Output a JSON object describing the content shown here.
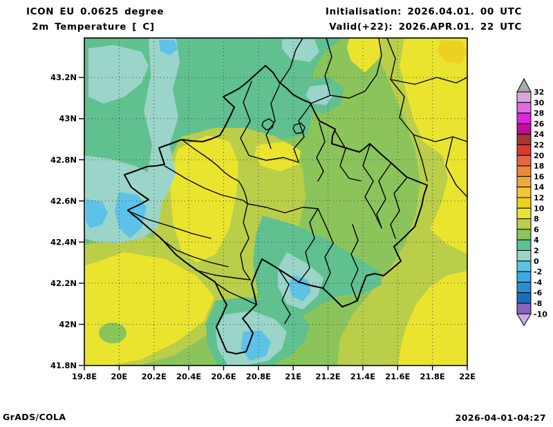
{
  "header": {
    "model": "ICON EU 0.0625 degree",
    "parameter": " 2m Temperature [ C]",
    "initialisation": "Initialisation: 2026.04.01. 00 UTC",
    "valid": "Valid(+22): 2026.APR.01. 22 UTC"
  },
  "footer": {
    "left": "GrADS/COLA",
    "right": "2026-04-01-04:27"
  },
  "axes": {
    "lat_labels": [
      "43.2N",
      "43N",
      "42.8N",
      "42.6N",
      "42.4N",
      "42.2N",
      "42N",
      "41.8N"
    ],
    "lon_labels": [
      "19.8E",
      "20E",
      "20.2E",
      "20.4E",
      "20.6E",
      "20.8E",
      "21E",
      "21.2E",
      "21.4E",
      "21.6E",
      "21.8E",
      "22E"
    ]
  },
  "colorbar": {
    "levels": [
      32,
      30,
      28,
      26,
      24,
      22,
      20,
      18,
      16,
      14,
      12,
      10,
      8,
      6,
      4,
      2,
      0,
      -2,
      -4,
      -6,
      -8,
      -10
    ],
    "colors_top_to_bottom": [
      "#d9a6dc",
      "#dd6bdd",
      "#de26de",
      "#c20d9c",
      "#a93434",
      "#dc3a2e",
      "#e26749",
      "#ea8a3b",
      "#f0a83a",
      "#f3c631",
      "#edd121",
      "#eae42e",
      "#bace49",
      "#8cc45c",
      "#60c090",
      "#9bd4c8",
      "#5ec2e8",
      "#3ea9e0",
      "#2a8bd0",
      "#1d6cbb",
      "#8a64bc"
    ],
    "above_max_color": "#a9a9a9",
    "below_min_color": "#c9aae2"
  },
  "chart_data": {
    "type": "map",
    "title": "2m Temperature [ C]",
    "model": "ICON EU 0.0625 degree",
    "initialisation": "2026.04.01. 00 UTC",
    "valid": "2026.APR.01. 22 UTC",
    "forecast_hour": "+22",
    "units": "C",
    "lon_range": [
      19.8,
      22.0
    ],
    "lat_range": [
      41.8,
      43.4
    ],
    "grid_interval_deg": 0.2,
    "contour_interval": 2,
    "value_range_shown": [
      -10,
      32
    ],
    "region": "Kosovo and surroundings",
    "field_summary": "Shaded 2m temperature: mostly 0-8C; pale cyan/blue pockets (-2 to 2C) over NW mountains, far west edge and southern Sharr range; yellow 8-12C over NE Serbia border area, west-central Kosovo and southwest lowlands; amber 10-12C spot at top-right corner"
  }
}
